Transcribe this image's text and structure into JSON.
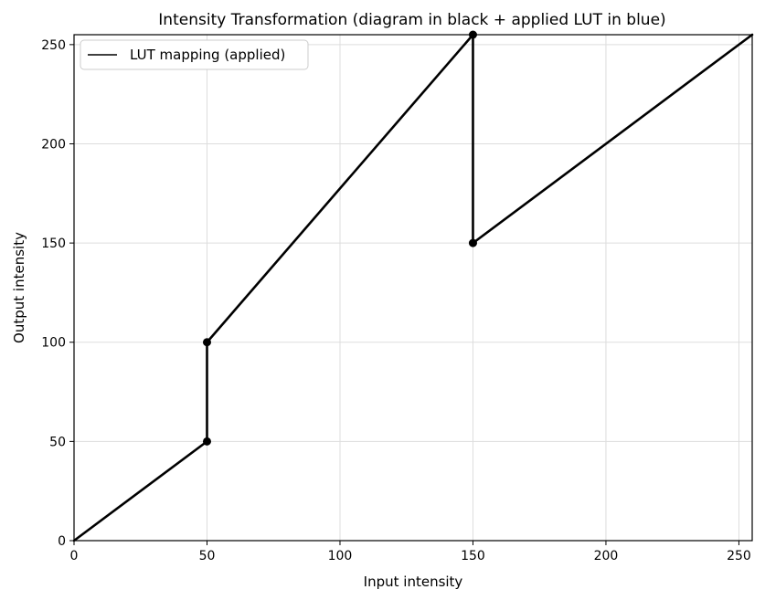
{
  "chart_data": {
    "type": "line",
    "title": "Intensity Transformation (diagram in black + applied LUT in blue)",
    "xlabel": "Input intensity",
    "ylabel": "Output intensity",
    "xlim": [
      0,
      255
    ],
    "ylim": [
      0,
      255
    ],
    "xticks": [
      0,
      50,
      100,
      150,
      200,
      250
    ],
    "yticks": [
      0,
      50,
      100,
      150,
      200,
      250
    ],
    "grid": true,
    "legend_position": "top-left",
    "series": [
      {
        "name": "LUT mapping (applied)",
        "color": "#000000",
        "x": [
          0,
          50,
          50,
          150,
          150,
          255
        ],
        "y": [
          0,
          50,
          100,
          255,
          150,
          255
        ]
      }
    ],
    "markers": {
      "color": "#000000",
      "points": [
        {
          "x": 50,
          "y": 50
        },
        {
          "x": 50,
          "y": 100
        },
        {
          "x": 150,
          "y": 255
        },
        {
          "x": 150,
          "y": 150
        }
      ]
    }
  }
}
